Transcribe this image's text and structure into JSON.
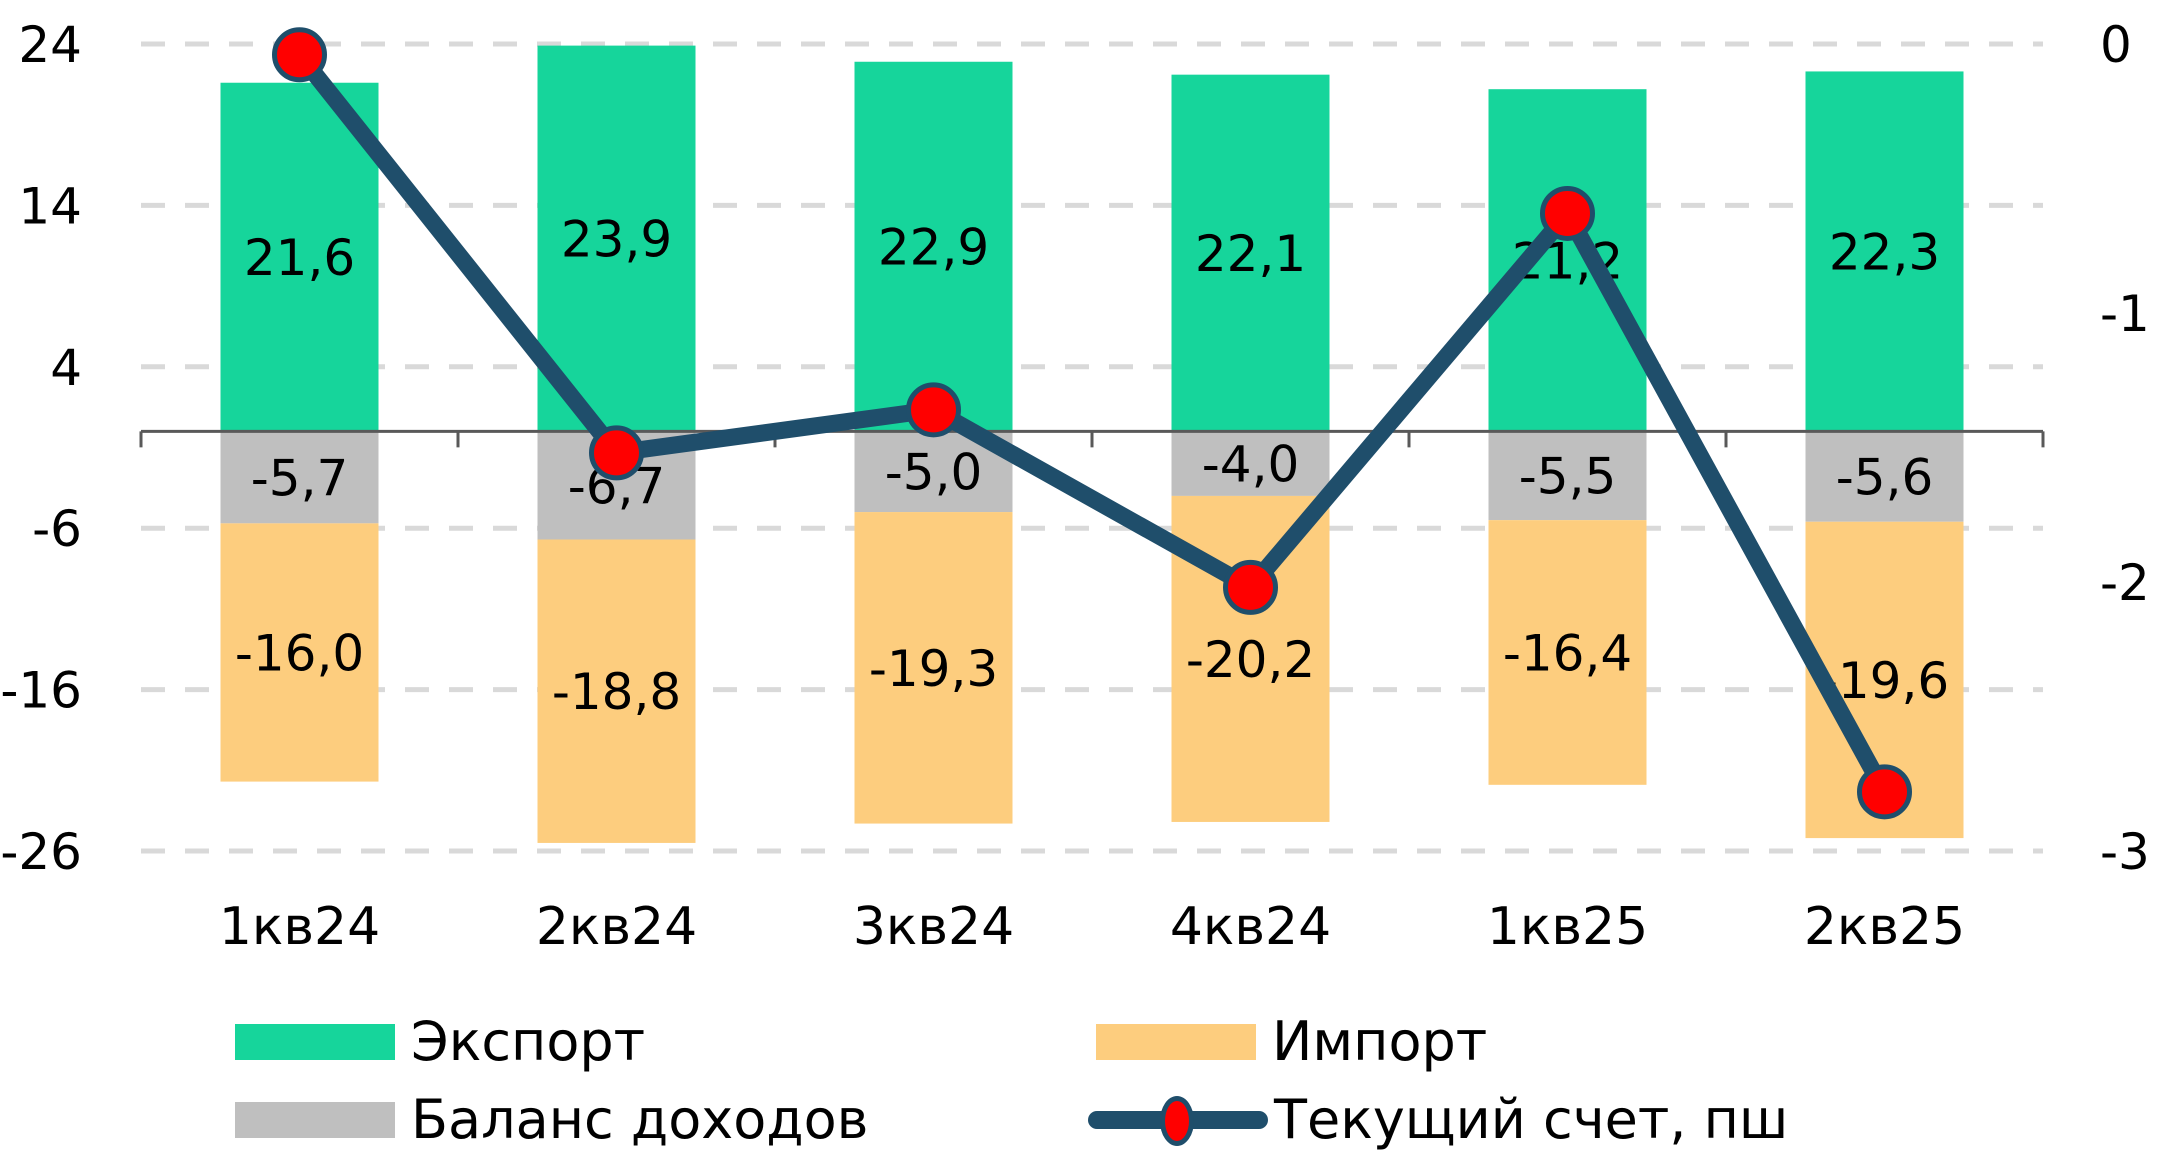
{
  "chart_data": {
    "type": "bar",
    "stacked": true,
    "title": "",
    "xlabel": "",
    "ylabel": "",
    "categories": [
      "1кв24",
      "2кв24",
      "3кв24",
      "4кв24",
      "1кв25",
      "2кв25"
    ],
    "series": [
      {
        "name": "Экспорт",
        "type": "bar",
        "axis": "left",
        "color": "#16d59b",
        "values": [
          21.6,
          23.9,
          22.9,
          22.1,
          21.2,
          22.3
        ],
        "labels": [
          "21,6",
          "23,9",
          "22,9",
          "22,1",
          "21,2",
          "22,3"
        ]
      },
      {
        "name": "Баланс доходов",
        "type": "bar",
        "axis": "left",
        "color": "#bfbfbf",
        "values": [
          -5.7,
          -6.7,
          -5.0,
          -4.0,
          -5.5,
          -5.6
        ],
        "labels": [
          "-5,7",
          "-6,7",
          "-5,0",
          "-4,0",
          "-5,5",
          "-5,6"
        ]
      },
      {
        "name": "Импорт",
        "type": "bar",
        "axis": "left",
        "color": "#fdcd7e",
        "values": [
          -16.0,
          -18.8,
          -19.3,
          -20.2,
          -16.4,
          -19.6
        ],
        "labels": [
          "-16,0",
          "-18,8",
          "-19,3",
          "-20,2",
          "-16,4",
          "-19,6"
        ]
      },
      {
        "name": "Текущий счет, пш",
        "type": "line",
        "axis": "right",
        "color": "#1f4e6b",
        "marker_color": "#ff0000",
        "values": [
          -0.04,
          -1.52,
          -1.36,
          -2.02,
          -0.63,
          -2.78
        ]
      }
    ],
    "left_axis": {
      "ticks": [
        24,
        14,
        4,
        -6,
        -16,
        -26
      ],
      "tick_labels": [
        "24",
        "14",
        "4",
        "-6",
        "-16",
        "-26"
      ],
      "ylim": [
        -26,
        24
      ]
    },
    "right_axis": {
      "ticks": [
        0,
        -1,
        -2,
        -3
      ],
      "tick_labels": [
        "0",
        "-1",
        "-2",
        "-3"
      ],
      "ylim": [
        -3,
        0
      ]
    },
    "grid": true,
    "legend_position": "bottom"
  },
  "legend": {
    "export": "Экспорт",
    "import": "Импорт",
    "income": "Баланс доходов",
    "current": "Текущий счет, пш"
  }
}
